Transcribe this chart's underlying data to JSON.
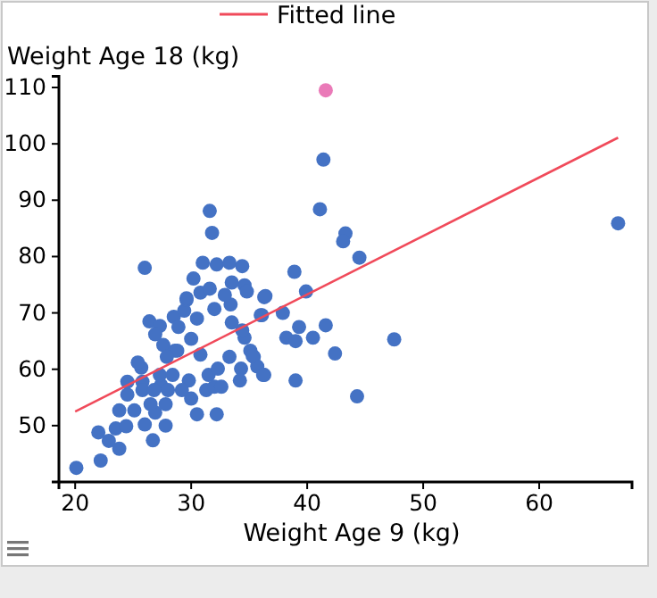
{
  "chart_data": {
    "type": "scatter",
    "xlabel": "Weight Age 9 (kg)",
    "ylabel": "Weight Age 18 (kg)",
    "xlim": [
      18.6,
      68
    ],
    "ylim": [
      40,
      112
    ],
    "xticks": [
      20,
      30,
      40,
      50,
      60
    ],
    "yticks": [
      50,
      60,
      70,
      80,
      90,
      100,
      110
    ],
    "legend": "top",
    "grid": false,
    "marker": "circle",
    "series": [
      {
        "color": "#4472c4",
        "x": [
          20.1,
          22.2,
          22.0,
          22.9,
          23.8,
          23.5,
          24.4,
          23.8,
          25.1,
          24.5,
          24.5,
          26.0,
          26.7,
          26.9,
          26.5,
          27.8,
          27.8,
          30.5,
          32.2,
          25.8,
          25.7,
          25.4,
          26.4,
          27.3,
          26.9,
          27.6,
          26.0,
          28.5,
          28.6,
          28.9,
          29.4,
          29.6,
          30.2,
          31.0,
          32.2,
          33.3,
          34.4,
          31.6,
          31.8,
          30.8,
          31.6,
          30.5,
          30.0,
          30.8,
          29.8,
          30.0,
          29.2,
          27.4,
          28.0,
          27.3,
          28.4,
          31.5,
          31.3,
          32.0,
          32.6,
          32.3,
          33.3,
          34.3,
          34.2,
          35.1,
          35.4,
          35.7,
          36.3,
          34.6,
          34.4,
          33.5,
          33.4,
          34.6,
          34.8,
          33.5,
          32.9,
          36.3,
          36.1,
          32.0,
          28.8,
          27.9,
          25.8,
          26.8,
          41.4,
          41.1,
          43.3,
          43.1,
          44.5,
          38.9,
          39.9,
          36.4,
          37.9,
          36.0,
          39.3,
          41.6,
          38.2,
          39.0,
          40.5,
          42.4,
          47.5,
          39.0,
          44.3,
          35.3,
          36.2,
          29.6,
          66.8
        ],
        "values": [
          42.5,
          43.8,
          48.8,
          47.3,
          45.9,
          49.5,
          49.9,
          52.7,
          52.7,
          55.5,
          57.8,
          50.2,
          47.4,
          52.3,
          53.8,
          50.0,
          53.8,
          52.0,
          52.0,
          57.8,
          60.3,
          61.2,
          68.5,
          67.7,
          66.2,
          64.3,
          78.0,
          69.3,
          63.3,
          67.5,
          70.4,
          72.3,
          76.1,
          78.9,
          78.6,
          78.9,
          78.3,
          88.1,
          84.2,
          73.6,
          74.3,
          69.0,
          65.4,
          62.6,
          58.0,
          54.8,
          56.3,
          57.2,
          56.3,
          59.0,
          59.0,
          59.0,
          56.3,
          56.9,
          56.9,
          60.1,
          62.2,
          60.1,
          58.0,
          63.3,
          62.2,
          60.5,
          59.0,
          65.6,
          66.9,
          68.3,
          71.5,
          74.9,
          73.8,
          75.4,
          73.2,
          72.8,
          69.6,
          70.7,
          63.3,
          62.2,
          56.3,
          56.3,
          97.2,
          88.4,
          84.1,
          82.7,
          79.8,
          77.3,
          73.8,
          73.0,
          70.0,
          69.6,
          67.5,
          67.8,
          65.6,
          65.0,
          65.6,
          62.8,
          65.3,
          58.0,
          55.2,
          62.4,
          59.0,
          72.6,
          85.9
        ]
      },
      {
        "color": "#ea7ab8",
        "x": [
          41.6
        ],
        "values": [
          109.5
        ]
      },
      {
        "type": "line",
        "name": "Fitted line",
        "color": "#f04a5a",
        "marker": "none",
        "x": [
          20,
          66.8
        ],
        "values": [
          52.5,
          101.1
        ]
      }
    ]
  }
}
